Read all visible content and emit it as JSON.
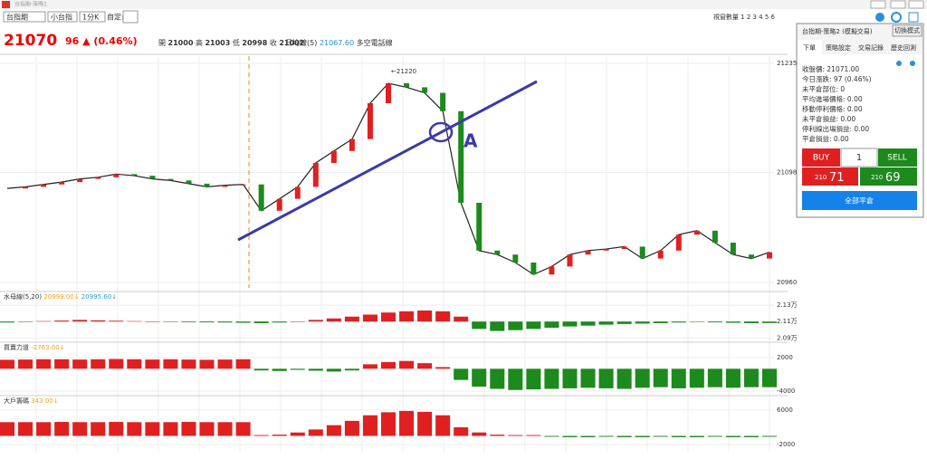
{
  "window": {
    "title": "台指期-策略1"
  },
  "toolbar": {
    "selects": [
      "台指期",
      "小台指",
      "1分K"
    ],
    "custom_label": "自定:",
    "window_count": "視窗數量 1 2 3 4 5 6"
  },
  "header": {
    "last_price": "21070",
    "change": "96 ▲ (0.46%)",
    "ohlc": [
      {
        "label": "開",
        "value": "21000"
      },
      {
        "label": "高",
        "value": "21003"
      },
      {
        "label": "低",
        "value": "20998"
      },
      {
        "label": "收",
        "value": "21002"
      }
    ],
    "ma_label": "日均線(5)",
    "ma_value": "21067.60",
    "line_name": "多空電話線"
  },
  "chart_data": [
    {
      "type": "line",
      "color": "#222222",
      "ylim": [
        20950,
        21245
      ],
      "yticks": [
        20960,
        21098,
        21235
      ],
      "grid": true,
      "annotations": [
        "←21220",
        "A"
      ],
      "values": [
        21078,
        21080,
        21083,
        21086,
        21090,
        21092,
        21096,
        21094,
        21090,
        21088,
        21084,
        21080,
        21082,
        21083,
        21050,
        21065,
        21080,
        21110,
        21125,
        21140,
        21185,
        21210,
        21205,
        21198,
        21175,
        21060,
        21000,
        20995,
        20985,
        20970,
        20980,
        20995,
        21000,
        21002,
        21005,
        20990,
        21000,
        21020,
        21025,
        21010,
        20995,
        20990,
        20998
      ]
    },
    {
      "type": "bar",
      "title": "水母線(5,20)",
      "legend": [
        {
          "name": "20999.00↓",
          "color": "#f0a020"
        },
        {
          "name": "20995.60↓",
          "color": "#2aa0d0"
        }
      ],
      "ylim": [
        20870,
        21345
      ],
      "yticks": [
        {
          "value": 21300,
          "label": "2.13万"
        },
        {
          "value": 21100,
          "label": "2.11万"
        },
        {
          "value": 20900,
          "label": "2.09万"
        }
      ],
      "values": [
        21088,
        21095,
        21105,
        21112,
        21120,
        21115,
        21110,
        21105,
        21100,
        21095,
        21092,
        21090,
        21088,
        21085,
        21080,
        21088,
        21100,
        21120,
        21138,
        21160,
        21185,
        21210,
        21225,
        21235,
        21225,
        21160,
        21010,
        20985,
        20995,
        21010,
        21025,
        21040,
        21050,
        21062,
        21070,
        21075,
        21080,
        21088,
        21095,
        21090,
        21085,
        21080,
        21082
      ]
    },
    {
      "type": "bar",
      "title": "買賣力道",
      "legend": [
        {
          "name": "-2763.00↓",
          "color": "#f0a020"
        }
      ],
      "ylim": [
        -4650,
        2810
      ],
      "yticks": [
        2000,
        -4000
      ],
      "values": [
        1600,
        1650,
        1700,
        1700,
        1650,
        1700,
        1750,
        1700,
        1650,
        1700,
        1650,
        1600,
        1650,
        1700,
        -300,
        -400,
        -200,
        -350,
        -500,
        -300,
        800,
        1200,
        1400,
        1000,
        300,
        -2000,
        -3200,
        -3600,
        -3800,
        -3700,
        -3600,
        -3500,
        -3400,
        -3500,
        -3600,
        -3400,
        -3300,
        -3500,
        -3400,
        -3300,
        -3400,
        -3300,
        -3300
      ]
    },
    {
      "type": "bar",
      "title": "大戶籌碼",
      "legend": [
        {
          "name": "343.00↓",
          "color": "#f0a020"
        }
      ],
      "ylim": [
        -2630,
        7050
      ],
      "yticks": [
        6000,
        -2000
      ],
      "values": [
        3200,
        3200,
        3200,
        3250,
        3200,
        3200,
        3250,
        3200,
        3200,
        3200,
        3250,
        3200,
        3200,
        3200,
        200,
        300,
        800,
        1500,
        2500,
        3500,
        4800,
        5500,
        5800,
        5600,
        4800,
        2000,
        800,
        300,
        200,
        200,
        -200,
        -300,
        -300,
        -200,
        -300,
        -300,
        -200,
        -300,
        -300,
        -200,
        -300,
        -300,
        -200
      ]
    }
  ],
  "side_panel": {
    "title": "台指期-策略2 (模擬交易)",
    "mode_button": "切換模式",
    "tabs": [
      "下單",
      "策略設定",
      "交易記錄",
      "歷史回測"
    ],
    "info_lines": [
      "收盤價: 21071.00",
      "今日漲跌: 97 (0.46%)",
      "未平倉部位: 0",
      "平均進場價格: 0.00",
      "移動停利價格: 0.00",
      "未平倉損益: 0.00",
      "停利線出場損益: 0.00",
      "平倉損益: 0.00"
    ],
    "buy": "BUY",
    "quantity": "1",
    "sell": "SELL",
    "bid": {
      "prefix": "210",
      "suffix": "71"
    },
    "ask": {
      "prefix": "210",
      "suffix": "69"
    },
    "close_all": "全部平倉"
  }
}
